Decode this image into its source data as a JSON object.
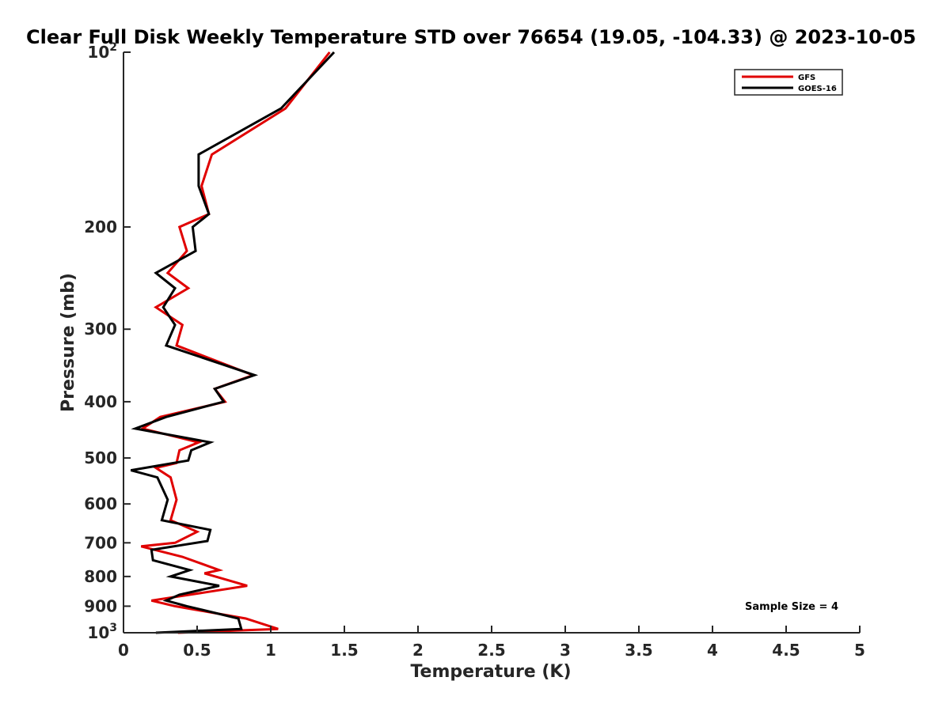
{
  "chart_data": {
    "type": "line",
    "title": "Clear Full Disk Weekly Temperature STD over 76654 (19.05, -104.33) @ 2023-10-05",
    "xlabel": "Temperature (K)",
    "ylabel": "Pressure (mb)",
    "xlim": [
      0,
      5
    ],
    "ylim": [
      100,
      1000
    ],
    "y_scale": "log",
    "y_reversed": true,
    "grid": false,
    "xticks": [
      0,
      0.5,
      1,
      1.5,
      2,
      2.5,
      3,
      3.5,
      4,
      4.5,
      5
    ],
    "xtick_labels": [
      "0",
      "0.5",
      "1",
      "1.5",
      "2",
      "2.5",
      "3",
      "3.5",
      "4",
      "4.5",
      "5"
    ],
    "yticks": [
      {
        "value": 100,
        "base": "10",
        "exp": "2"
      },
      {
        "value": 200,
        "label": "200"
      },
      {
        "value": 300,
        "label": "300"
      },
      {
        "value": 400,
        "label": "400"
      },
      {
        "value": 500,
        "label": "500"
      },
      {
        "value": 600,
        "label": "600"
      },
      {
        "value": 700,
        "label": "700"
      },
      {
        "value": 800,
        "label": "800"
      },
      {
        "value": 900,
        "label": "900"
      },
      {
        "value": 1000,
        "base": "10",
        "exp": "3"
      }
    ],
    "legend_position": "top-right",
    "annotation": "Sample Size = 4",
    "series": [
      {
        "name": "GFS",
        "color": "#e00000",
        "points": [
          [
            1.4,
            100
          ],
          [
            1.1,
            125
          ],
          [
            0.6,
            150
          ],
          [
            0.53,
            170
          ],
          [
            0.58,
            190
          ],
          [
            0.38,
            200
          ],
          [
            0.43,
            220
          ],
          [
            0.3,
            240
          ],
          [
            0.44,
            255
          ],
          [
            0.22,
            275
          ],
          [
            0.4,
            295
          ],
          [
            0.36,
            320
          ],
          [
            0.88,
            360
          ],
          [
            0.62,
            380
          ],
          [
            0.69,
            400
          ],
          [
            0.25,
            425
          ],
          [
            0.13,
            445
          ],
          [
            0.51,
            470
          ],
          [
            0.38,
            485
          ],
          [
            0.36,
            510
          ],
          [
            0.22,
            520
          ],
          [
            0.32,
            540
          ],
          [
            0.36,
            590
          ],
          [
            0.32,
            640
          ],
          [
            0.5,
            670
          ],
          [
            0.35,
            700
          ],
          [
            0.12,
            710
          ],
          [
            0.4,
            740
          ],
          [
            0.65,
            780
          ],
          [
            0.55,
            790
          ],
          [
            0.84,
            830
          ],
          [
            0.58,
            850
          ],
          [
            0.19,
            880
          ],
          [
            0.35,
            900
          ],
          [
            0.83,
            945
          ],
          [
            1.05,
            985
          ],
          [
            0.37,
            1000
          ]
        ]
      },
      {
        "name": "GOES-16",
        "color": "#000000",
        "points": [
          [
            1.43,
            100
          ],
          [
            1.07,
            125
          ],
          [
            0.51,
            150
          ],
          [
            0.51,
            170
          ],
          [
            0.58,
            190
          ],
          [
            0.47,
            200
          ],
          [
            0.49,
            220
          ],
          [
            0.22,
            240
          ],
          [
            0.35,
            255
          ],
          [
            0.27,
            275
          ],
          [
            0.35,
            295
          ],
          [
            0.29,
            320
          ],
          [
            0.89,
            360
          ],
          [
            0.62,
            380
          ],
          [
            0.68,
            400
          ],
          [
            0.29,
            425
          ],
          [
            0.08,
            445
          ],
          [
            0.59,
            470
          ],
          [
            0.46,
            485
          ],
          [
            0.44,
            505
          ],
          [
            0.05,
            525
          ],
          [
            0.23,
            540
          ],
          [
            0.3,
            590
          ],
          [
            0.26,
            640
          ],
          [
            0.59,
            665
          ],
          [
            0.57,
            695
          ],
          [
            0.19,
            720
          ],
          [
            0.2,
            750
          ],
          [
            0.45,
            780
          ],
          [
            0.32,
            800
          ],
          [
            0.65,
            830
          ],
          [
            0.38,
            860
          ],
          [
            0.29,
            880
          ],
          [
            0.43,
            900
          ],
          [
            0.78,
            945
          ],
          [
            0.8,
            985
          ],
          [
            0.22,
            1000
          ]
        ]
      }
    ]
  }
}
